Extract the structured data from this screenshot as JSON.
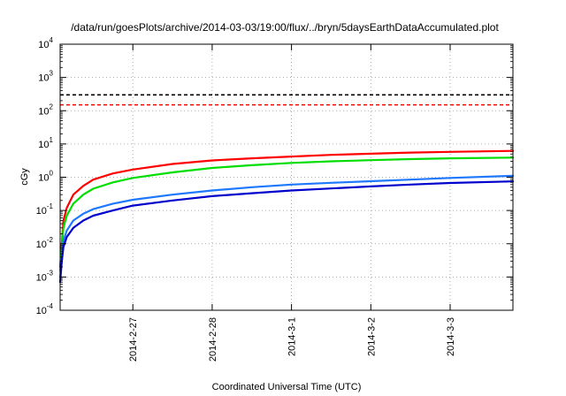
{
  "chart_data": {
    "type": "line",
    "title": "/data/run/goesPlots/archive/2014-03-03/19:00/flux/../bryn/5daysEarthDataAccumulated.plot",
    "xlabel": "Coordinated Universal Time (UTC)",
    "ylabel": "cGy",
    "y_scale": "log",
    "ylim": [
      0.0001,
      10000
    ],
    "xlim": [
      "2014-02-26 02:00",
      "2014-03-03 19:00"
    ],
    "x_ticks": [
      "2014-2-27",
      "2014-2-28",
      "2014-3-1",
      "2014-3-2",
      "2014-3-3"
    ],
    "y_ticks": [
      {
        "base": "10",
        "exp": "-4"
      },
      {
        "base": "10",
        "exp": "-3"
      },
      {
        "base": "10",
        "exp": "-2"
      },
      {
        "base": "10",
        "exp": "-1"
      },
      {
        "base": "10",
        "exp": "0"
      },
      {
        "base": "10",
        "exp": "1"
      },
      {
        "base": "10",
        "exp": "2"
      },
      {
        "base": "10",
        "exp": "3"
      },
      {
        "base": "10",
        "exp": "4"
      }
    ],
    "grid": true,
    "thresholds": [
      {
        "value": 300,
        "color": "#000000",
        "style": "dashed"
      },
      {
        "value": 150,
        "color": "#ff0000",
        "style": "dashed"
      }
    ],
    "series": [
      {
        "color": "#ff0000",
        "points": [
          [
            "2014-02-26 02:00",
            0.002
          ],
          [
            "2014-02-26 02:30",
            0.01
          ],
          [
            "2014-02-26 03:00",
            0.05
          ],
          [
            "2014-02-26 04:00",
            0.12
          ],
          [
            "2014-02-26 06:00",
            0.3
          ],
          [
            "2014-02-26 09:00",
            0.55
          ],
          [
            "2014-02-26 12:00",
            0.85
          ],
          [
            "2014-02-26 18:00",
            1.3
          ],
          [
            "2014-02-27 00:00",
            1.7
          ],
          [
            "2014-02-27 12:00",
            2.5
          ],
          [
            "2014-02-28 00:00",
            3.2
          ],
          [
            "2014-02-28 12:00",
            3.7
          ],
          [
            "2014-03-01 00:00",
            4.2
          ],
          [
            "2014-03-01 12:00",
            4.7
          ],
          [
            "2014-03-02 00:00",
            5.1
          ],
          [
            "2014-03-02 12:00",
            5.5
          ],
          [
            "2014-03-03 00:00",
            5.8
          ],
          [
            "2014-03-03 19:00",
            6.2
          ]
        ]
      },
      {
        "color": "#00dd00",
        "points": [
          [
            "2014-02-26 02:00",
            0.0015
          ],
          [
            "2014-02-26 02:30",
            0.008
          ],
          [
            "2014-02-26 03:00",
            0.03
          ],
          [
            "2014-02-26 04:00",
            0.07
          ],
          [
            "2014-02-26 06:00",
            0.16
          ],
          [
            "2014-02-26 09:00",
            0.3
          ],
          [
            "2014-02-26 12:00",
            0.45
          ],
          [
            "2014-02-26 18:00",
            0.7
          ],
          [
            "2014-02-27 00:00",
            0.95
          ],
          [
            "2014-02-27 12:00",
            1.4
          ],
          [
            "2014-02-28 00:00",
            1.9
          ],
          [
            "2014-02-28 12:00",
            2.3
          ],
          [
            "2014-03-01 00:00",
            2.7
          ],
          [
            "2014-03-01 12:00",
            3.0
          ],
          [
            "2014-03-02 00:00",
            3.25
          ],
          [
            "2014-03-02 12:00",
            3.5
          ],
          [
            "2014-03-03 00:00",
            3.7
          ],
          [
            "2014-03-03 19:00",
            3.9
          ]
        ]
      },
      {
        "color": "#1e78ff",
        "points": [
          [
            "2014-02-26 02:00",
            0.001
          ],
          [
            "2014-02-26 02:30",
            0.004
          ],
          [
            "2014-02-26 03:00",
            0.012
          ],
          [
            "2014-02-26 04:00",
            0.025
          ],
          [
            "2014-02-26 06:00",
            0.05
          ],
          [
            "2014-02-26 09:00",
            0.08
          ],
          [
            "2014-02-26 12:00",
            0.11
          ],
          [
            "2014-02-26 18:00",
            0.16
          ],
          [
            "2014-02-27 00:00",
            0.21
          ],
          [
            "2014-02-27 12:00",
            0.3
          ],
          [
            "2014-02-28 00:00",
            0.4
          ],
          [
            "2014-02-28 12:00",
            0.5
          ],
          [
            "2014-03-01 00:00",
            0.6
          ],
          [
            "2014-03-01 12:00",
            0.68
          ],
          [
            "2014-03-02 00:00",
            0.76
          ],
          [
            "2014-03-02 12:00",
            0.85
          ],
          [
            "2014-03-03 00:00",
            0.95
          ],
          [
            "2014-03-03 19:00",
            1.1
          ]
        ]
      },
      {
        "color": "#0000cc",
        "points": [
          [
            "2014-02-26 02:00",
            0.0007
          ],
          [
            "2014-02-26 02:30",
            0.003
          ],
          [
            "2014-02-26 03:00",
            0.008
          ],
          [
            "2014-02-26 04:00",
            0.016
          ],
          [
            "2014-02-26 06:00",
            0.03
          ],
          [
            "2014-02-26 09:00",
            0.05
          ],
          [
            "2014-02-26 12:00",
            0.07
          ],
          [
            "2014-02-26 18:00",
            0.1
          ],
          [
            "2014-02-27 00:00",
            0.14
          ],
          [
            "2014-02-27 12:00",
            0.2
          ],
          [
            "2014-02-28 00:00",
            0.27
          ],
          [
            "2014-02-28 12:00",
            0.33
          ],
          [
            "2014-03-01 00:00",
            0.4
          ],
          [
            "2014-03-01 12:00",
            0.46
          ],
          [
            "2014-03-02 00:00",
            0.53
          ],
          [
            "2014-03-02 12:00",
            0.6
          ],
          [
            "2014-03-03 00:00",
            0.67
          ],
          [
            "2014-03-03 19:00",
            0.75
          ]
        ]
      }
    ]
  }
}
